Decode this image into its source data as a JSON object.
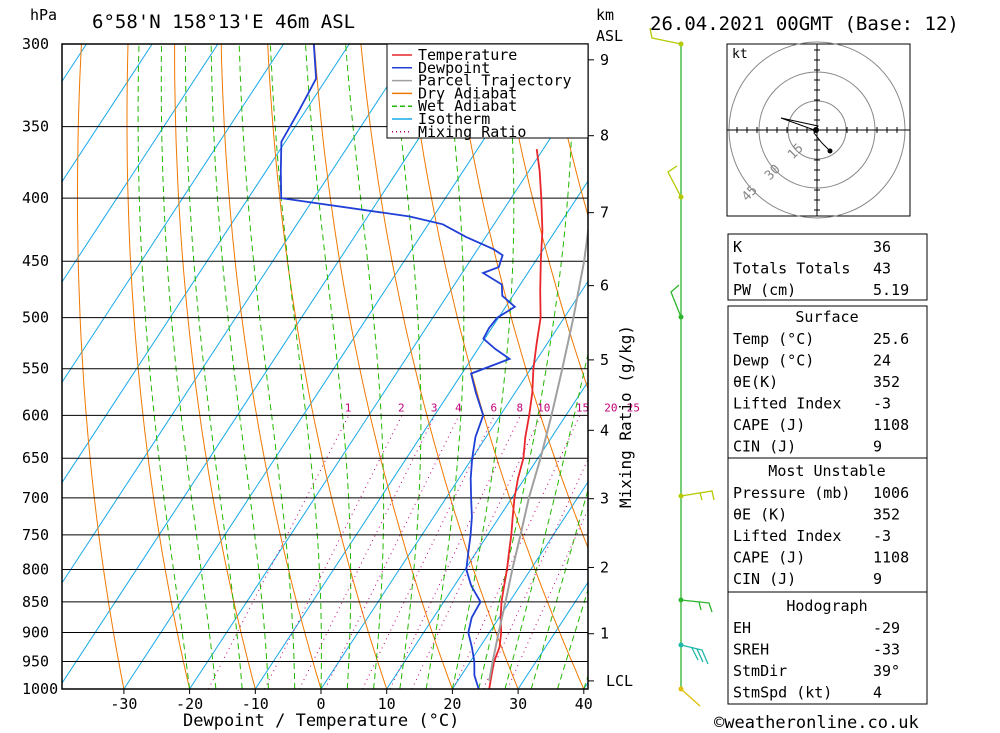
{
  "header": {
    "hpa_label": "hPa",
    "location": "6°58'N 158°13'E 46m ASL",
    "km_label": "km",
    "asl_label": "ASL",
    "date": "26.04.2021 00GMT (Base: 12)"
  },
  "legend": [
    {
      "label": "Temperature",
      "color": "#e8262b"
    },
    {
      "label": "Dewpoint",
      "color": "#1f3fd6"
    },
    {
      "label": "Parcel Trajectory",
      "color": "#a0a0a0"
    },
    {
      "label": "Dry Adiabat",
      "color": "#f07800"
    },
    {
      "label": "Wet Adiabat",
      "color": "#22b800"
    },
    {
      "label": "Isotherm",
      "color": "#18a8e8"
    },
    {
      "label": "Mixing Ratio",
      "color": "#c0007a"
    }
  ],
  "chart_data": {
    "type": "line",
    "title": "6°58'N 158°13'E 46m ASL",
    "xlabel": "Dewpoint / Temperature (°C)",
    "ylabel": "hPa",
    "secondary_ylabel": "Mixing Ratio (g/kg)",
    "pressure_levels": [
      300,
      350,
      400,
      450,
      500,
      550,
      600,
      650,
      700,
      750,
      800,
      850,
      900,
      950,
      1000
    ],
    "x_ticks": [
      -30,
      -20,
      -10,
      0,
      10,
      20,
      30,
      40
    ],
    "xlim": [
      -40,
      40
    ],
    "km_ticks": [
      {
        "km": "1",
        "p": 902
      },
      {
        "km": "2",
        "p": 797
      },
      {
        "km": "3",
        "p": 701
      },
      {
        "km": "4",
        "p": 617
      },
      {
        "km": "5",
        "p": 541
      },
      {
        "km": "6",
        "p": 471
      },
      {
        "km": "7",
        "p": 411
      },
      {
        "km": "8",
        "p": 356
      },
      {
        "km": "9",
        "p": 309
      }
    ],
    "lcl_label": "LCL",
    "lcl_p": 985,
    "mixing_ratio_labels": [
      "1",
      "2",
      "3",
      "4",
      "6",
      "8",
      "10",
      "15",
      "20",
      "25"
    ],
    "mixing_ratio_values": [
      1,
      2,
      3,
      4,
      6,
      8,
      10,
      15,
      20,
      25
    ],
    "series": [
      {
        "name": "Temperature",
        "color": "#e8262b",
        "points": [
          [
            1000,
            25.6
          ],
          [
            975,
            24.6
          ],
          [
            950,
            23.6
          ],
          [
            925,
            23.0
          ],
          [
            900,
            21.8
          ],
          [
            875,
            20.2
          ],
          [
            850,
            18.8
          ],
          [
            825,
            17.6
          ],
          [
            800,
            16.4
          ],
          [
            775,
            15.0
          ],
          [
            750,
            13.6
          ],
          [
            725,
            12.0
          ],
          [
            700,
            10.4
          ],
          [
            675,
            9.0
          ],
          [
            650,
            7.8
          ],
          [
            625,
            6.0
          ],
          [
            600,
            4.4
          ],
          [
            575,
            2.6
          ],
          [
            550,
            0.4
          ],
          [
            525,
            -1.6
          ],
          [
            500,
            -3.6
          ],
          [
            475,
            -6.4
          ],
          [
            450,
            -9.2
          ],
          [
            425,
            -12.0
          ],
          [
            400,
            -15.4
          ],
          [
            380,
            -18.4
          ],
          [
            365,
            -21.0
          ]
        ]
      },
      {
        "name": "Dewpoint",
        "color": "#1f3fd6",
        "points": [
          [
            1000,
            24.0
          ],
          [
            975,
            22.0
          ],
          [
            950,
            20.6
          ],
          [
            925,
            18.8
          ],
          [
            900,
            16.8
          ],
          [
            875,
            15.8
          ],
          [
            850,
            15.6
          ],
          [
            825,
            12.6
          ],
          [
            800,
            10.2
          ],
          [
            775,
            8.8
          ],
          [
            750,
            7.4
          ],
          [
            725,
            5.8
          ],
          [
            700,
            3.8
          ],
          [
            675,
            1.8
          ],
          [
            650,
            0.0
          ],
          [
            625,
            -1.6
          ],
          [
            600,
            -2.6
          ],
          [
            575,
            -6.0
          ],
          [
            555,
            -8.6
          ],
          [
            540,
            -4.2
          ],
          [
            530,
            -7.4
          ],
          [
            520,
            -10.2
          ],
          [
            510,
            -10.4
          ],
          [
            500,
            -10.2
          ],
          [
            490,
            -8.6
          ],
          [
            480,
            -11.6
          ],
          [
            470,
            -12.8
          ],
          [
            460,
            -16.8
          ],
          [
            455,
            -15.0
          ],
          [
            445,
            -15.6
          ],
          [
            440,
            -17.6
          ],
          [
            430,
            -23.0
          ],
          [
            420,
            -27.8
          ],
          [
            414,
            -33.6
          ],
          [
            400,
            -55.0
          ],
          [
            380,
            -57.8
          ],
          [
            360,
            -60.6
          ],
          [
            340,
            -61.0
          ],
          [
            320,
            -61.6
          ],
          [
            300,
            -65.4
          ]
        ]
      },
      {
        "name": "Parcel Trajectory",
        "color": "#a0a0a0",
        "points": [
          [
            985,
            24.8
          ],
          [
            950,
            23.4
          ],
          [
            900,
            21.4
          ],
          [
            850,
            19.4
          ],
          [
            800,
            17.2
          ],
          [
            750,
            15.0
          ],
          [
            700,
            12.6
          ],
          [
            650,
            10.4
          ],
          [
            600,
            7.8
          ],
          [
            550,
            4.8
          ],
          [
            500,
            1.4
          ],
          [
            450,
            -2.6
          ],
          [
            400,
            -7.6
          ],
          [
            370,
            -11.0
          ]
        ]
      }
    ]
  },
  "hodograph": {
    "unit_label": "kt",
    "ring_labels": [
      "15",
      "30",
      "45"
    ]
  },
  "indices": {
    "basic": [
      {
        "label": "K",
        "value": "36"
      },
      {
        "label": "Totals Totals",
        "value": "43"
      },
      {
        "label": "PW (cm)",
        "value": "5.19"
      }
    ],
    "surface_title": "Surface",
    "surface": [
      {
        "label": "Temp (°C)",
        "value": "25.6"
      },
      {
        "label": "Dewp (°C)",
        "value": "24"
      },
      {
        "label": "θE(K)",
        "value": "352"
      },
      {
        "label": "Lifted Index",
        "value": "-3"
      },
      {
        "label": "CAPE (J)",
        "value": "1108"
      },
      {
        "label": "CIN (J)",
        "value": "9"
      }
    ],
    "mu_title": "Most Unstable",
    "mu": [
      {
        "label": "Pressure (mb)",
        "value": "1006"
      },
      {
        "label": "θE (K)",
        "value": "352"
      },
      {
        "label": "Lifted Index",
        "value": "-3"
      },
      {
        "label": "CAPE (J)",
        "value": "1108"
      },
      {
        "label": "CIN (J)",
        "value": "9"
      }
    ],
    "hodo_title": "Hodograph",
    "hodo": [
      {
        "label": "EH",
        "value": "-29"
      },
      {
        "label": "SREH",
        "value": "-33"
      },
      {
        "label": "StmDir",
        "value": "39°"
      },
      {
        "label": "StmSpd (kt)",
        "value": "4"
      }
    ]
  },
  "footer": {
    "credit": "©weatheronline.co.uk"
  }
}
